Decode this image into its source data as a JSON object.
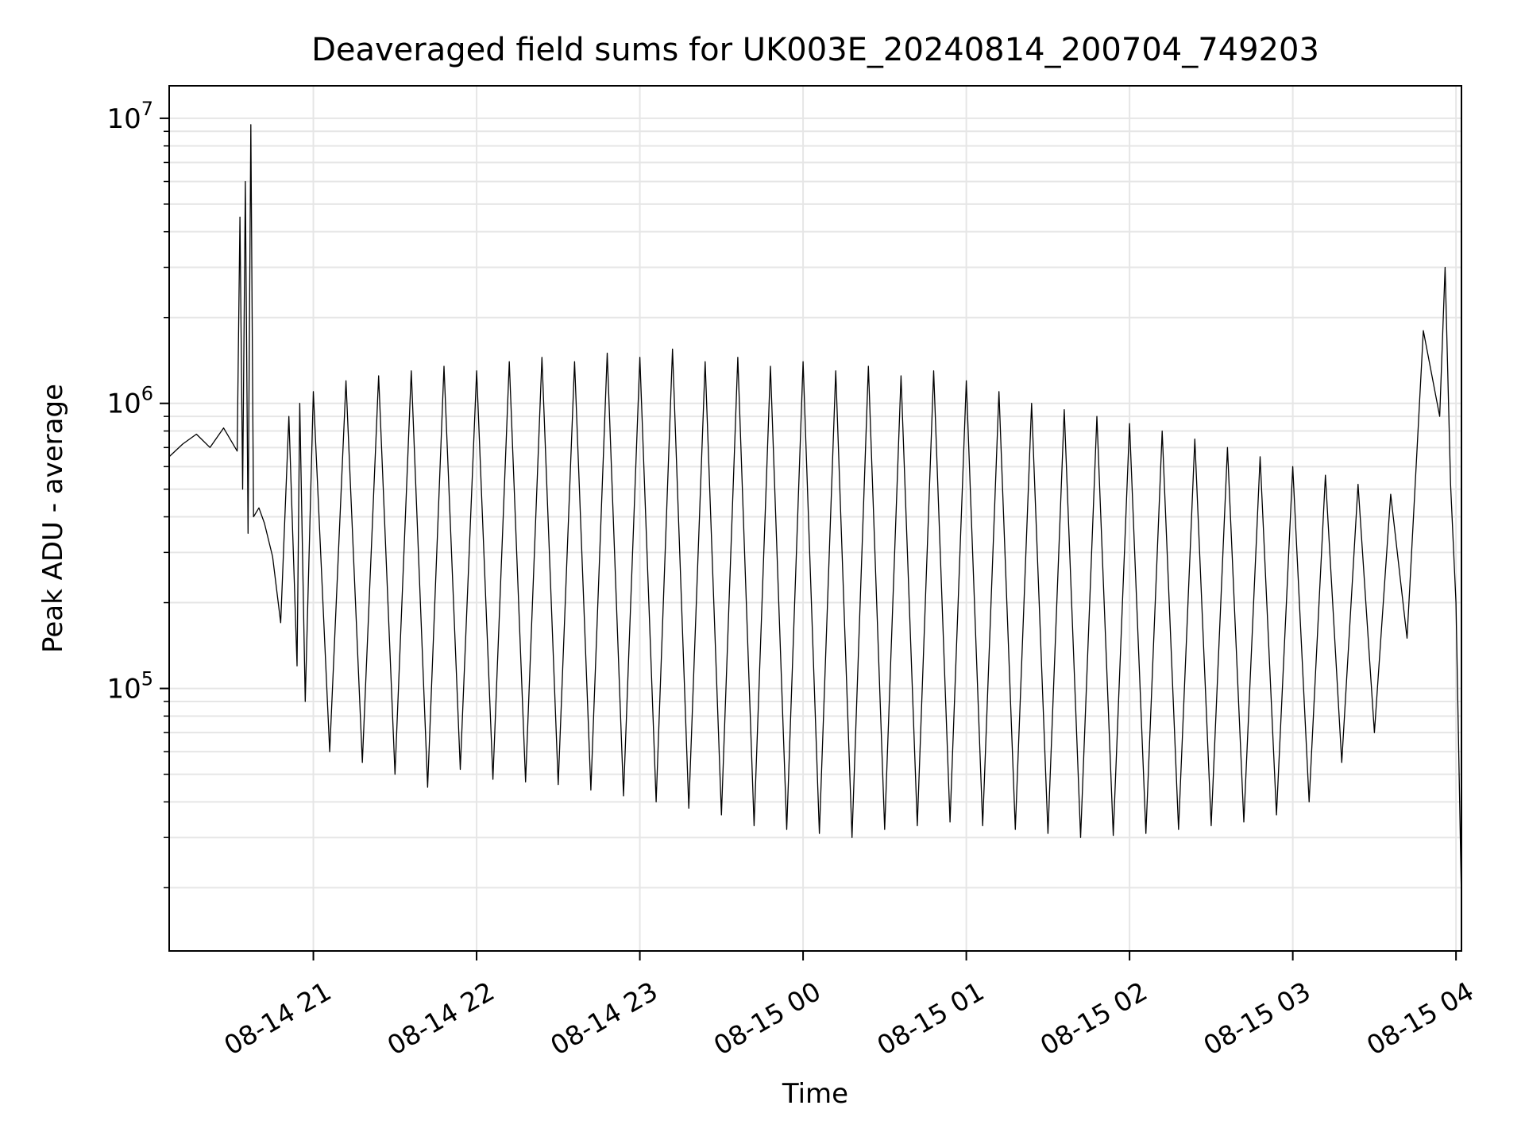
{
  "chart_data": {
    "type": "line",
    "title": "Deaveraged field sums for UK003E_20240814_200704_749203",
    "xlabel": "Time",
    "ylabel": "Peak ADU - average",
    "yscale": "log",
    "ylim": [
      12000,
      13000000
    ],
    "xlim": [
      "2024-08-14 20:07",
      "2024-08-15 04:02"
    ],
    "x_ticks": [
      {
        "label": "08-14 21",
        "time": "2024-08-14 21:00"
      },
      {
        "label": "08-14 22",
        "time": "2024-08-14 22:00"
      },
      {
        "label": "08-14 23",
        "time": "2024-08-14 23:00"
      },
      {
        "label": "08-15 00",
        "time": "2024-08-15 00:00"
      },
      {
        "label": "08-15 01",
        "time": "2024-08-15 01:00"
      },
      {
        "label": "08-15 02",
        "time": "2024-08-15 02:00"
      },
      {
        "label": "08-15 03",
        "time": "2024-08-15 03:00"
      },
      {
        "label": "08-15 04",
        "time": "2024-08-15 04:00"
      }
    ],
    "y_ticks": [
      {
        "base": "10",
        "exp": "5",
        "value": 100000
      },
      {
        "base": "10",
        "exp": "6",
        "value": 1000000
      },
      {
        "base": "10",
        "exp": "7",
        "value": 10000000
      }
    ],
    "grid": true,
    "line_color": "#000000",
    "grid_color": "#e6e6e6",
    "series": [
      {
        "x": [
          "2024-08-14 20:07",
          "2024-08-14 20:12",
          "2024-08-14 20:17",
          "2024-08-14 20:22",
          "2024-08-14 20:27",
          "2024-08-14 20:32",
          "2024-08-14 20:33",
          "2024-08-14 20:34",
          "2024-08-14 20:35",
          "2024-08-14 20:36",
          "2024-08-14 20:37",
          "2024-08-14 20:38",
          "2024-08-14 20:40",
          "2024-08-14 20:42",
          "2024-08-14 20:45",
          "2024-08-14 20:48",
          "2024-08-14 20:51",
          "2024-08-14 20:54",
          "2024-08-14 20:55",
          "2024-08-14 20:57",
          "2024-08-14 21:00",
          "2024-08-14 21:06",
          "2024-08-14 21:12",
          "2024-08-14 21:18",
          "2024-08-14 21:24",
          "2024-08-14 21:30",
          "2024-08-14 21:36",
          "2024-08-14 21:42",
          "2024-08-14 21:48",
          "2024-08-14 21:54",
          "2024-08-14 22:00",
          "2024-08-14 22:06",
          "2024-08-14 22:12",
          "2024-08-14 22:18",
          "2024-08-14 22:24",
          "2024-08-14 22:30",
          "2024-08-14 22:36",
          "2024-08-14 22:42",
          "2024-08-14 22:48",
          "2024-08-14 22:54",
          "2024-08-14 23:00",
          "2024-08-14 23:06",
          "2024-08-14 23:12",
          "2024-08-14 23:18",
          "2024-08-14 23:24",
          "2024-08-14 23:30",
          "2024-08-14 23:36",
          "2024-08-14 23:42",
          "2024-08-14 23:48",
          "2024-08-14 23:54",
          "2024-08-15 00:00",
          "2024-08-15 00:06",
          "2024-08-15 00:12",
          "2024-08-15 00:18",
          "2024-08-15 00:24",
          "2024-08-15 00:30",
          "2024-08-15 00:36",
          "2024-08-15 00:42",
          "2024-08-15 00:48",
          "2024-08-15 00:54",
          "2024-08-15 01:00",
          "2024-08-15 01:06",
          "2024-08-15 01:12",
          "2024-08-15 01:18",
          "2024-08-15 01:24",
          "2024-08-15 01:30",
          "2024-08-15 01:36",
          "2024-08-15 01:42",
          "2024-08-15 01:48",
          "2024-08-15 01:54",
          "2024-08-15 02:00",
          "2024-08-15 02:06",
          "2024-08-15 02:12",
          "2024-08-15 02:18",
          "2024-08-15 02:24",
          "2024-08-15 02:30",
          "2024-08-15 02:36",
          "2024-08-15 02:42",
          "2024-08-15 02:48",
          "2024-08-15 02:54",
          "2024-08-15 03:00",
          "2024-08-15 03:06",
          "2024-08-15 03:12",
          "2024-08-15 03:18",
          "2024-08-15 03:24",
          "2024-08-15 03:30",
          "2024-08-15 03:36",
          "2024-08-15 03:42",
          "2024-08-15 03:48",
          "2024-08-15 03:54",
          "2024-08-15 03:56",
          "2024-08-15 03:58",
          "2024-08-15 04:00",
          "2024-08-15 04:02"
        ],
        "y": [
          650000,
          720000,
          780000,
          700000,
          820000,
          680000,
          4500000,
          500000,
          6000000,
          350000,
          9500000,
          400000,
          430000,
          380000,
          290000,
          170000,
          900000,
          120000,
          1000000,
          90000,
          1100000,
          60000,
          1200000,
          55000,
          1250000,
          50000,
          1300000,
          45000,
          1350000,
          52000,
          1300000,
          48000,
          1400000,
          47000,
          1450000,
          46000,
          1400000,
          44000,
          1500000,
          42000,
          1450000,
          40000,
          1550000,
          38000,
          1400000,
          36000,
          1450000,
          33000,
          1350000,
          32000,
          1400000,
          31000,
          1300000,
          30000,
          1350000,
          32000,
          1250000,
          33000,
          1300000,
          34000,
          1200000,
          33000,
          1100000,
          32000,
          1000000,
          31000,
          950000,
          30000,
          900000,
          30500,
          850000,
          31000,
          800000,
          32000,
          750000,
          33000,
          700000,
          34000,
          650000,
          36000,
          600000,
          40000,
          560000,
          55000,
          520000,
          70000,
          480000,
          150000,
          1800000,
          900000,
          3000000,
          520000,
          200000,
          18000
        ]
      }
    ]
  }
}
